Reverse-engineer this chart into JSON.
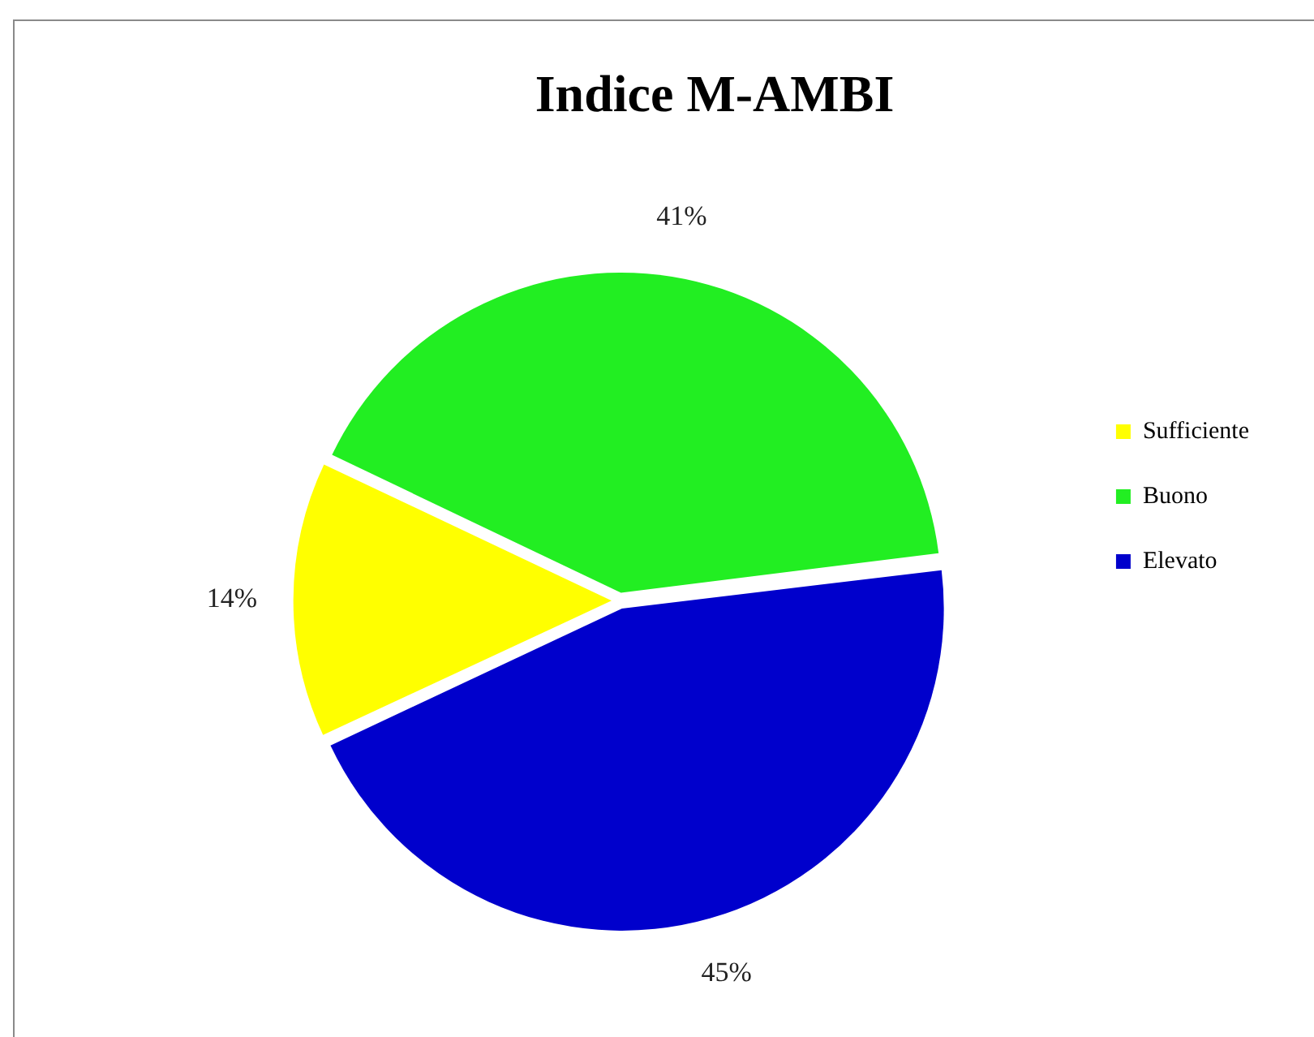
{
  "chart_data": {
    "type": "pie",
    "title": "Indice M-AMBI",
    "categories": [
      "Sufficiente",
      "Buono",
      "Elevato"
    ],
    "values": [
      14,
      41,
      45
    ],
    "colors": [
      "#ffff00",
      "#22ee22",
      "#0000cc"
    ],
    "value_labels": [
      "14%",
      "41%",
      "45%"
    ],
    "legend": "right"
  }
}
